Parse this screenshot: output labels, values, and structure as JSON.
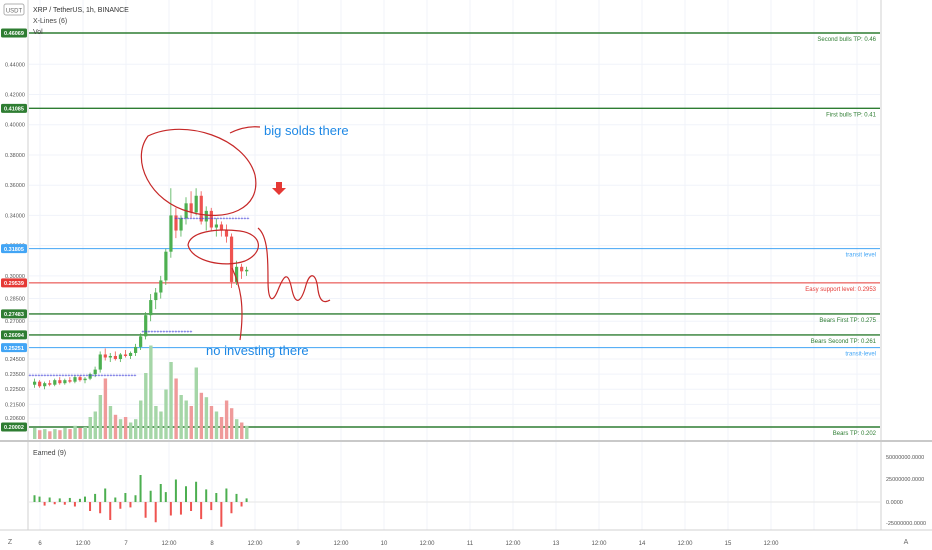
{
  "header": {
    "currency_button": "USDT",
    "title": "XRP / TetherUS, 1h, BINANCE",
    "indicator_xlines": "X-Lines (6)",
    "indicator_vol": "Vol",
    "lower_indicator": "Earned (9)",
    "corner_left": "Z",
    "corner_right": "A"
  },
  "colors": {
    "green_level": "#2e7d32",
    "red_level": "#e53935",
    "blue_level": "#42a5f5",
    "candle_up": "#4caf50",
    "candle_down": "#ef5350",
    "annotation_red": "#c62828",
    "annotation_blue": "#1e88e5",
    "xline_marker": "#3d3dd8"
  },
  "price_axis": {
    "ticks": [
      "0.44000",
      "0.42000",
      "0.40000",
      "0.38000",
      "0.36000",
      "0.34000",
      "0.32000",
      "0.30000",
      "0.28500",
      "0.27000",
      "0.24500",
      "0.23500",
      "0.22500",
      "0.21500",
      "0.20600"
    ],
    "badges": [
      {
        "text": "0.46069",
        "value": 0.46069,
        "color": "green"
      },
      {
        "text": "0.41085",
        "value": 0.41085,
        "color": "green"
      },
      {
        "text": "0.31805",
        "value": 0.31805,
        "color": "blue"
      },
      {
        "text": "0.29539",
        "value": 0.29539,
        "color": "red"
      },
      {
        "text": "0.27483",
        "value": 0.27483,
        "color": "green"
      },
      {
        "text": "0.26094",
        "value": 0.26094,
        "color": "green"
      },
      {
        "text": "0.25251",
        "value": 0.25251,
        "color": "blue"
      },
      {
        "text": "0.20002",
        "value": 0.20002,
        "color": "green"
      }
    ]
  },
  "levels": [
    {
      "label": "Second bulls TP: 0.46",
      "value": 0.46069,
      "color": "green"
    },
    {
      "label": "First bulls TP: 0.41",
      "value": 0.41085,
      "color": "green"
    },
    {
      "label": "transit level",
      "value": 0.31805,
      "color": "blue"
    },
    {
      "label": "Easy support level: 0.2953",
      "value": 0.29539,
      "color": "red"
    },
    {
      "label": "Bears First TP: 0.275",
      "value": 0.27483,
      "color": "green"
    },
    {
      "label": "Bears Second TP: 0.261",
      "value": 0.26094,
      "color": "green"
    },
    {
      "label": "transit-level",
      "value": 0.25251,
      "color": "blue"
    },
    {
      "label": "Bears TP: 0.202",
      "value": 0.20002,
      "color": "green"
    }
  ],
  "annotations": {
    "big_solds": "big solds there",
    "no_investing": "no investing there"
  },
  "time_axis": [
    "6",
    "12:00",
    "7",
    "12:00",
    "8",
    "12:00",
    "9",
    "12:00",
    "10",
    "12:00",
    "11",
    "12:00",
    "13",
    "12:00",
    "14",
    "12:00",
    "15",
    "12:00"
  ],
  "lower_axis": [
    "50000000.0000",
    "25000000.0000",
    "0.0000",
    "-25000000.0000"
  ],
  "chart_data": {
    "type": "candlestick",
    "title": "XRP / TetherUS, 1h, BINANCE",
    "ylim": [
      0.195,
      0.47
    ],
    "candles": [
      [
        0.228,
        0.232,
        0.226,
        0.23
      ],
      [
        0.23,
        0.231,
        0.226,
        0.227
      ],
      [
        0.227,
        0.23,
        0.225,
        0.229
      ],
      [
        0.229,
        0.231,
        0.227,
        0.228
      ],
      [
        0.228,
        0.232,
        0.227,
        0.231
      ],
      [
        0.231,
        0.233,
        0.228,
        0.229
      ],
      [
        0.229,
        0.232,
        0.228,
        0.231
      ],
      [
        0.231,
        0.233,
        0.229,
        0.23
      ],
      [
        0.23,
        0.234,
        0.229,
        0.233
      ],
      [
        0.233,
        0.234,
        0.23,
        0.231
      ],
      [
        0.231,
        0.233,
        0.229,
        0.232
      ],
      [
        0.232,
        0.236,
        0.231,
        0.235
      ],
      [
        0.235,
        0.24,
        0.233,
        0.238
      ],
      [
        0.238,
        0.25,
        0.236,
        0.248
      ],
      [
        0.248,
        0.252,
        0.244,
        0.246
      ],
      [
        0.246,
        0.249,
        0.243,
        0.247
      ],
      [
        0.247,
        0.25,
        0.244,
        0.245
      ],
      [
        0.245,
        0.249,
        0.243,
        0.248
      ],
      [
        0.248,
        0.251,
        0.246,
        0.247
      ],
      [
        0.247,
        0.25,
        0.245,
        0.249
      ],
      [
        0.249,
        0.255,
        0.247,
        0.253
      ],
      [
        0.253,
        0.262,
        0.251,
        0.26
      ],
      [
        0.26,
        0.276,
        0.258,
        0.274
      ],
      [
        0.274,
        0.288,
        0.27,
        0.284
      ],
      [
        0.284,
        0.292,
        0.278,
        0.289
      ],
      [
        0.289,
        0.3,
        0.285,
        0.297
      ],
      [
        0.297,
        0.318,
        0.294,
        0.316
      ],
      [
        0.316,
        0.358,
        0.312,
        0.34
      ],
      [
        0.34,
        0.345,
        0.325,
        0.33
      ],
      [
        0.33,
        0.34,
        0.326,
        0.338
      ],
      [
        0.338,
        0.352,
        0.334,
        0.348
      ],
      [
        0.348,
        0.356,
        0.338,
        0.342
      ],
      [
        0.342,
        0.358,
        0.34,
        0.353
      ],
      [
        0.353,
        0.356,
        0.334,
        0.336
      ],
      [
        0.336,
        0.346,
        0.33,
        0.343
      ],
      [
        0.343,
        0.345,
        0.33,
        0.332
      ],
      [
        0.332,
        0.338,
        0.326,
        0.334
      ],
      [
        0.334,
        0.336,
        0.326,
        0.33
      ],
      [
        0.33,
        0.334,
        0.322,
        0.326
      ],
      [
        0.326,
        0.328,
        0.292,
        0.296
      ],
      [
        0.296,
        0.31,
        0.294,
        0.306
      ],
      [
        0.306,
        0.308,
        0.298,
        0.303
      ],
      [
        0.303,
        0.306,
        0.3,
        0.304
      ]
    ],
    "volumes": [
      0.1,
      0.08,
      0.09,
      0.07,
      0.09,
      0.08,
      0.1,
      0.09,
      0.12,
      0.1,
      0.11,
      0.2,
      0.25,
      0.4,
      0.55,
      0.3,
      0.22,
      0.18,
      0.2,
      0.15,
      0.18,
      0.35,
      0.6,
      0.85,
      0.3,
      0.25,
      0.45,
      0.7,
      0.55,
      0.4,
      0.35,
      0.3,
      0.65,
      0.42,
      0.38,
      0.3,
      0.25,
      0.2,
      0.35,
      0.28,
      0.18,
      0.15,
      0.12
    ],
    "earned": [
      0.15,
      0.12,
      -0.08,
      0.1,
      -0.05,
      0.08,
      -0.06,
      0.09,
      -0.1,
      0.07,
      0.12,
      -0.2,
      0.18,
      -0.25,
      0.3,
      -0.4,
      0.1,
      -0.15,
      0.2,
      -0.12,
      0.15,
      0.6,
      -0.35,
      0.25,
      -0.45,
      0.4,
      0.22,
      -0.3,
      0.5,
      -0.28,
      0.35,
      -0.2,
      0.45,
      -0.38,
      0.28,
      -0.18,
      0.2,
      -0.55,
      0.3,
      -0.25,
      0.18,
      -0.1,
      0.08
    ]
  }
}
